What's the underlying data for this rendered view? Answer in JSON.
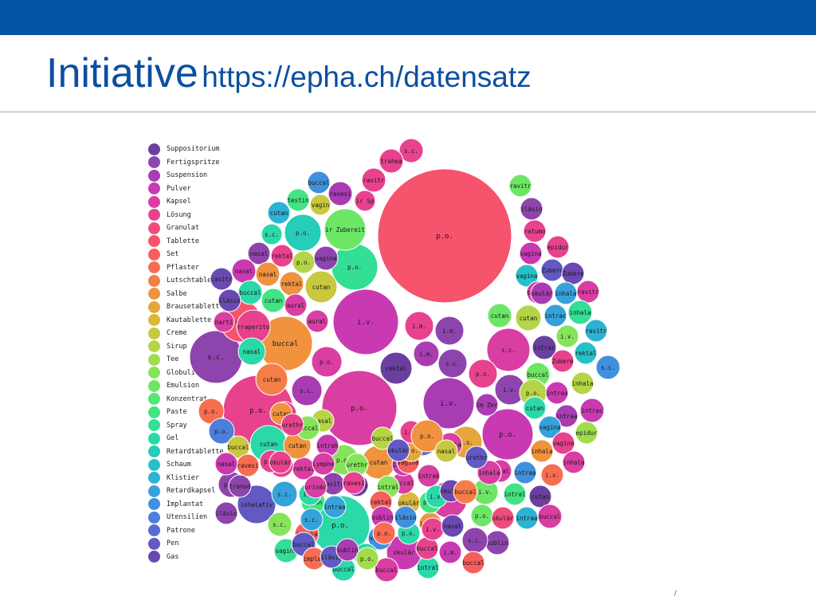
{
  "header": {
    "title_main": "Initiative",
    "title_url": "https://epha.ch/datensatz",
    "bar_color": "#0054a3"
  },
  "page_number": "/",
  "chart_data": {
    "type": "bubble",
    "legend": [
      {
        "name": "Suppositorium",
        "color": "#6b3fa0"
      },
      {
        "name": "Fertigspritze",
        "color": "#8e44ad"
      },
      {
        "name": "Suspension",
        "color": "#a83cb2"
      },
      {
        "name": "Pulver",
        "color": "#c93ab2"
      },
      {
        "name": "Kapsel",
        "color": "#d93ea2"
      },
      {
        "name": "Lösung",
        "color": "#e8428f"
      },
      {
        "name": "Granulat",
        "color": "#f04b7c"
      },
      {
        "name": "Tablette",
        "color": "#f6536c"
      },
      {
        "name": "Set",
        "color": "#f85e5e"
      },
      {
        "name": "Pflaster",
        "color": "#f86d52"
      },
      {
        "name": "Lutschtablette",
        "color": "#f57e48"
      },
      {
        "name": "Salbe",
        "color": "#f1923f"
      },
      {
        "name": "Brausetablette",
        "color": "#e6a63a"
      },
      {
        "name": "Kautablette",
        "color": "#d9b83a"
      },
      {
        "name": "Creme",
        "color": "#c9c83f"
      },
      {
        "name": "Sirup",
        "color": "#b5d446"
      },
      {
        "name": "Tee",
        "color": "#9fdd4f"
      },
      {
        "name": "Globuli",
        "color": "#86e45a"
      },
      {
        "name": "Emulsion",
        "color": "#6de666"
      },
      {
        "name": "Konzentrat",
        "color": "#56e672"
      },
      {
        "name": "Paste",
        "color": "#42e482"
      },
      {
        "name": "Spray",
        "color": "#33df95"
      },
      {
        "name": "Gel",
        "color": "#2ad8a8"
      },
      {
        "name": "Retardtablette",
        "color": "#26cdb9"
      },
      {
        "name": "Schaum",
        "color": "#27c0c8"
      },
      {
        "name": "Klistier",
        "color": "#2db2d4"
      },
      {
        "name": "Retardkapsel",
        "color": "#36a2db"
      },
      {
        "name": "Implantat",
        "color": "#4190dd"
      },
      {
        "name": "Utensilien",
        "color": "#4d7edb"
      },
      {
        "name": "Patrone",
        "color": "#596bd2"
      },
      {
        "name": "Pen",
        "color": "#6259c4"
      },
      {
        "name": "Gas",
        "color": "#6a49b3"
      }
    ],
    "bubbles": [
      {
        "label": "p.o.",
        "group": "Tablette",
        "size": 84
      },
      {
        "label": "i.v.",
        "group": "Pulver",
        "size": 41
      },
      {
        "label": "p.o.",
        "group": "Kapsel",
        "size": 47
      },
      {
        "label": "p.o.",
        "group": "Lösung",
        "size": 44
      },
      {
        "label": "i.v.",
        "group": "Suspension",
        "size": 32
      },
      {
        "label": "p.o.",
        "group": "Pulver",
        "size": 32
      },
      {
        "label": "s.c.",
        "group": "Fertigspritze",
        "size": 33
      },
      {
        "label": "p.o.",
        "group": "Gel",
        "size": 37
      },
      {
        "label": "s.c.",
        "group": "Kapsel",
        "size": 27
      },
      {
        "label": "buccal",
        "group": "Salbe",
        "size": 34
      },
      {
        "label": "inhalativ",
        "group": "Pen",
        "size": 24
      },
      {
        "label": "okulär",
        "group": "Kapsel",
        "size": 23
      },
      {
        "label": "cutan",
        "group": "Tablette",
        "size": 26
      },
      {
        "label": "cutan",
        "group": "Gel",
        "size": 23
      },
      {
        "label": "p.o.",
        "group": "Retardtablette",
        "size": 23
      },
      {
        "label": "rraperitoneal",
        "group": "Lösung",
        "size": 21
      },
      {
        "label": "p.o.",
        "group": "Spray",
        "size": 29
      },
      {
        "label": "ir Zubereitung",
        "group": "Emulsion",
        "size": 26
      },
      {
        "label": "p.o.",
        "group": "Patrone",
        "size": 21
      },
      {
        "label": "p.o.",
        "group": "Brausetablette",
        "size": 20
      },
      {
        "label": "p.o.",
        "group": "Globuli",
        "size": 19
      },
      {
        "label": "cutan",
        "group": "Creme",
        "size": 20
      },
      {
        "label": "i.m.",
        "group": "Lösung",
        "size": 18
      },
      {
        "label": "i.m.",
        "group": "Suspension",
        "size": 16
      },
      {
        "label": "i.m.",
        "group": "Fertigspritze",
        "size": 18
      },
      {
        "label": "rektal",
        "group": "Suppositorium",
        "size": 20
      },
      {
        "label": "s.c.",
        "group": "Suspension",
        "size": 19
      },
      {
        "label": "p.o.",
        "group": "Kapsel",
        "size": 19
      },
      {
        "label": "cutan",
        "group": "Lutschtablette",
        "size": 20
      },
      {
        "label": "s.c.",
        "group": "Fertigspritze",
        "size": 18
      },
      {
        "label": "p.o.",
        "group": "Lösung",
        "size": 18
      },
      {
        "label": "cutan",
        "group": "Salbe",
        "size": 21
      },
      {
        "label": "s.c.",
        "group": "Lösung",
        "size": 15
      },
      {
        "label": "traheal",
        "group": "Lösung",
        "size": 15
      },
      {
        "label": "ravitr",
        "group": "Lösung",
        "size": 15
      },
      {
        "label": "ravesi",
        "group": "Suspension",
        "size": 15
      },
      {
        "label": "testin",
        "group": "Paste",
        "size": 14
      },
      {
        "label": "buccal",
        "group": "Implantat",
        "size": 14
      },
      {
        "label": "vaginal",
        "group": "Creme",
        "size": 13
      },
      {
        "label": "ir Spül",
        "group": "Lösung",
        "size": 13
      },
      {
        "label": "cutan",
        "group": "Klistier",
        "size": 14
      },
      {
        "label": "s.c.",
        "group": "Gel",
        "size": 13
      },
      {
        "label": "nasal",
        "group": "Fertigspritze",
        "size": 14
      },
      {
        "label": "rektal",
        "group": "Lösung",
        "size": 14
      },
      {
        "label": "p.o.",
        "group": "Sirup",
        "size": 14
      },
      {
        "label": "vaginal",
        "group": "Fertigspritze",
        "size": 15
      },
      {
        "label": "nasal",
        "group": "Pulver",
        "size": 15
      },
      {
        "label": "nasal",
        "group": "Salbe",
        "size": 15
      },
      {
        "label": "rektal",
        "group": "Salbe",
        "size": 15
      },
      {
        "label": "buccal",
        "group": "Gel",
        "size": 15
      },
      {
        "label": "cutan",
        "group": "Paste",
        "size": 15
      },
      {
        "label": "aural",
        "group": "Kapsel",
        "size": 14
      },
      {
        "label": "aural",
        "group": "Kapsel",
        "size": 14
      },
      {
        "label": "cavitr",
        "group": "Gas",
        "size": 14
      },
      {
        "label": "iläsion",
        "group": "Gas",
        "size": 14
      },
      {
        "label": "nartik",
        "group": "Kapsel",
        "size": 13
      },
      {
        "label": "nasal",
        "group": "Gel",
        "size": 17
      },
      {
        "label": "p.o.",
        "group": "Pflaster",
        "size": 16
      },
      {
        "label": "s.c.",
        "group": "Retardkapsel",
        "size": 16
      },
      {
        "label": "p.o.",
        "group": "Fertigspritze",
        "size": 16
      },
      {
        "label": "p.o.",
        "group": "Utensilien",
        "size": 16
      },
      {
        "label": "buccal",
        "group": "Creme",
        "size": 14
      },
      {
        "label": "ravitr",
        "group": "Emulsion",
        "size": 14
      },
      {
        "label": "iläsion",
        "group": "Fertigspritze",
        "size": 14
      },
      {
        "label": "ratumor",
        "group": "Lösung",
        "size": 14
      },
      {
        "label": "epidural",
        "group": "Lösung",
        "size": 14
      },
      {
        "label": "vaginal",
        "group": "Pulver",
        "size": 14
      },
      {
        "label": "vaginal",
        "group": "Schaum",
        "size": 14
      },
      {
        "label": "Zubereitung",
        "group": "Pen",
        "size": 14
      },
      {
        "label": "Zubereitung",
        "group": "Gas",
        "size": 14
      },
      {
        "label": "buccal",
        "group": "Kapsel",
        "size": 14
      },
      {
        "label": "okulär",
        "group": "Suspension",
        "size": 14
      },
      {
        "label": "inhalativ",
        "group": "Retardkapsel",
        "size": 14
      },
      {
        "label": "ravitr",
        "group": "Kapsel",
        "size": 14
      },
      {
        "label": "cutan",
        "group": "Emulsion",
        "size": 15
      },
      {
        "label": "cutan",
        "group": "Sirup",
        "size": 16
      },
      {
        "label": "intracavernös",
        "group": "Retardkapsel",
        "size": 14
      },
      {
        "label": "inhalativ",
        "group": "Spray",
        "size": 15
      },
      {
        "label": "i.v.",
        "group": "Globuli",
        "size": 14
      },
      {
        "label": "ravitr",
        "group": "Klistier",
        "size": 14
      },
      {
        "label": "intracavernös",
        "group": "Suppositorium",
        "size": 15
      },
      {
        "label": "rektal",
        "group": "Schaum",
        "size": 14
      },
      {
        "label": "Zubereitung",
        "group": "Lösung",
        "size": 14
      },
      {
        "label": "s.c.",
        "group": "Implantat",
        "size": 15
      },
      {
        "label": "buccal",
        "group": "Emulsion",
        "size": 15
      },
      {
        "label": "inhalativ",
        "group": "Sirup",
        "size": 14
      },
      {
        "label": "i.v.",
        "group": "Fertigspritze",
        "size": 19
      },
      {
        "label": "p.o.",
        "group": "Sirup",
        "size": 17
      },
      {
        "label": "intraartikulär",
        "group": "Pulver",
        "size": 14
      },
      {
        "label": "im Zerfall",
        "group": "Suspension",
        "size": 14
      },
      {
        "label": "cutan",
        "group": "Gel",
        "size": 14
      },
      {
        "label": "intracavernös",
        "group": "Pulver",
        "size": 15
      },
      {
        "label": "intraartikulär",
        "group": "Suspension",
        "size": 14
      },
      {
        "label": "vaginal",
        "group": "Retardkapsel",
        "size": 14
      },
      {
        "label": "epidural",
        "group": "Tee",
        "size": 14
      },
      {
        "label": "vaginal",
        "group": "Lösung",
        "size": 14
      },
      {
        "label": "inhalativ",
        "group": "Salbe",
        "size": 14
      },
      {
        "label": "inhalativ",
        "group": "Kapsel",
        "size": 14
      },
      {
        "label": "nasal",
        "group": "Kapsel",
        "size": 14
      },
      {
        "label": "intraartikulär",
        "group": "Implantat",
        "size": 14
      },
      {
        "label": "i.v.",
        "group": "Pflaster",
        "size": 14
      },
      {
        "label": "cutan",
        "group": "Suppositorium",
        "size": 14
      },
      {
        "label": "intraläsional",
        "group": "Paste",
        "size": 14
      },
      {
        "label": "i.v.",
        "group": "Emulsion",
        "size": 16
      },
      {
        "label": "inhalativ",
        "group": "Kapsel",
        "size": 15
      },
      {
        "label": "intraartikulär",
        "group": "Klistier",
        "size": 14
      },
      {
        "label": "p.o.",
        "group": "Emulsion",
        "size": 14
      },
      {
        "label": "okulär",
        "group": "Granulat",
        "size": 14
      },
      {
        "label": "buccal",
        "group": "Kapsel",
        "size": 15
      },
      {
        "label": "sublingual",
        "group": "Fertigspritze",
        "size": 15
      },
      {
        "label": "s.c.",
        "group": "Fertigspritze",
        "size": 16
      },
      {
        "label": "i.m.",
        "group": "Pulver",
        "size": 14
      },
      {
        "label": "buccal",
        "group": "Set",
        "size": 14
      },
      {
        "label": "intraläsional",
        "group": "Gel",
        "size": 14
      },
      {
        "label": "okulär",
        "group": "Pulver",
        "size": 22
      },
      {
        "label": "buccal",
        "group": "Kapsel",
        "size": 15
      },
      {
        "label": "buccal",
        "group": "Lösung",
        "size": 14
      },
      {
        "label": "p.o.",
        "group": "Gel",
        "size": 14
      },
      {
        "label": "intraläsional",
        "group": "Salbe",
        "size": 14
      },
      {
        "label": "p.o.",
        "group": "Paste",
        "size": 14
      },
      {
        "label": "okulär",
        "group": "Kautablette",
        "size": 14
      },
      {
        "label": "buccal",
        "group": "Kapsel",
        "size": 14
      },
      {
        "label": "intrakavernös",
        "group": "Kapsel",
        "size": 14
      },
      {
        "label": "inhalativ",
        "group": "Pulver",
        "size": 14
      },
      {
        "label": "intraläsional",
        "group": "Globuli",
        "size": 14
      },
      {
        "label": "rektal",
        "group": "Set",
        "size": 14
      },
      {
        "label": "sublingual",
        "group": "Pulver",
        "size": 14
      },
      {
        "label": "vaginal",
        "group": "Implantat",
        "size": 15
      },
      {
        "label": "nasal",
        "group": "Gel",
        "size": 15
      },
      {
        "label": "buccal",
        "group": "Gel",
        "size": 15
      },
      {
        "label": "inhalativ",
        "group": "Set",
        "size": 15
      },
      {
        "label": "cutan",
        "group": "Paste",
        "size": 15
      },
      {
        "label": "s.c.",
        "group": "Globuli",
        "size": 15
      },
      {
        "label": "rektal",
        "group": "Kapsel",
        "size": 14
      },
      {
        "label": "intrakavernös",
        "group": "Pulver",
        "size": 14
      },
      {
        "label": "iläsion",
        "group": "Suppositorium",
        "size": 14
      },
      {
        "label": "ravitr",
        "group": "Fertigspritze",
        "size": 14
      },
      {
        "label": "nasal",
        "group": "Lösung",
        "size": 15
      },
      {
        "label": "cutan",
        "group": "Salbe",
        "size": 17
      },
      {
        "label": "nasal",
        "group": "Sirup",
        "size": 14
      },
      {
        "label": "buccal",
        "group": "Globuli",
        "size": 15
      },
      {
        "label": "buccal",
        "group": "Lösung",
        "size": 15
      },
      {
        "label": "cutan",
        "group": "Salbe",
        "size": 14
      },
      {
        "label": "i.v.",
        "group": "Gel",
        "size": 14
      },
      {
        "label": "buccal",
        "group": "Sirup",
        "size": 14
      },
      {
        "label": "vaginal",
        "group": "Set",
        "size": 14
      },
      {
        "label": "i.v.",
        "group": "Gel",
        "size": 14
      },
      {
        "label": "p.o.",
        "group": "Brausetablette",
        "size": 14
      },
      {
        "label": "urethral",
        "group": "Pen",
        "size": 14
      },
      {
        "label": "inhalativ",
        "group": "Kapsel",
        "size": 15
      },
      {
        "label": "okulär",
        "group": "Pen",
        "size": 14
      },
      {
        "label": "ravesi",
        "group": "Pflaster",
        "size": 14
      },
      {
        "label": "transdermal",
        "group": "Fertigspritze",
        "size": 14
      },
      {
        "label": "nasal",
        "group": "Pulver",
        "size": 14
      },
      {
        "label": "iläsion",
        "group": "Fertigspritze",
        "size": 14
      },
      {
        "label": "p.o.",
        "group": "Lösung",
        "size": 14
      },
      {
        "label": "okulär",
        "group": "Lösung",
        "size": 14
      },
      {
        "label": "urethral",
        "group": "Lösung",
        "size": 14
      },
      {
        "label": "Lymphe",
        "group": "Kapsel",
        "size": 14
      },
      {
        "label": "urethral",
        "group": "Globuli",
        "size": 14
      },
      {
        "label": "urinär",
        "group": "Kapsel",
        "size": 14
      },
      {
        "label": "ravesi",
        "group": "Lösung",
        "size": 14
      },
      {
        "label": "intraartikulär",
        "group": "Retardkapsel",
        "size": 14
      },
      {
        "label": "s.c.",
        "group": "Retardkapsel",
        "size": 14
      },
      {
        "label": "vaginal",
        "group": "Spray",
        "size": 15
      },
      {
        "label": "buccal",
        "group": "Pen",
        "size": 15
      },
      {
        "label": "implantat",
        "group": "Pflaster",
        "size": 14
      },
      {
        "label": "iläsion",
        "group": "Pen",
        "size": 14
      },
      {
        "label": "sublingual",
        "group": "Suspension",
        "size": 14
      },
      {
        "label": "p.o.",
        "group": "Tee",
        "size": 14
      },
      {
        "label": "p.o.",
        "group": "Pflaster",
        "size": 14
      },
      {
        "label": "iläsion",
        "group": "Implantat",
        "size": 14
      },
      {
        "label": "i.v.",
        "group": "Lösung",
        "size": 14
      },
      {
        "label": "nasal",
        "group": "Gas",
        "size": 14
      },
      {
        "label": "okulär",
        "group": "Gas",
        "size": 14
      },
      {
        "label": "i.m.",
        "group": "Lösung",
        "size": 14
      },
      {
        "label": "p.o.",
        "group": "Salbe",
        "size": 20
      },
      {
        "label": "nasal",
        "group": "Creme",
        "size": 14
      },
      {
        "label": "buccal",
        "group": "Lutschtablette",
        "size": 15
      }
    ]
  }
}
